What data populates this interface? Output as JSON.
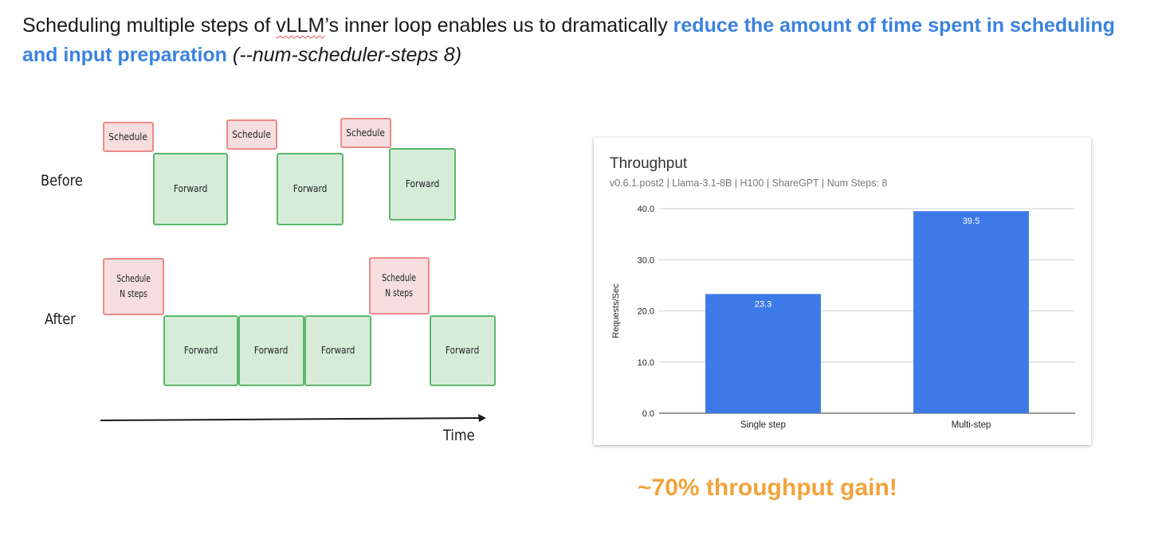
{
  "headline": {
    "part1": " Scheduling multiple steps of ",
    "product": "vLLM",
    "part2": "’s inner loop enables us to dramatically ",
    "highlight": "reduce the amount of time spent in scheduling and input preparation",
    "flag": " (--num-scheduler-steps 8)"
  },
  "diagram": {
    "before_label": "Before",
    "after_label": "After",
    "time_label": "Time",
    "schedule_label": "Schedule",
    "schedule_n_line1": "Schedule",
    "schedule_n_line2": "N steps",
    "forward_label": "Forward",
    "colors": {
      "schedule_fill": "#f6dede",
      "schedule_border": "#ec8a8a",
      "forward_fill": "#d6ecd9",
      "forward_border": "#5cb868"
    }
  },
  "chart_data": {
    "type": "bar",
    "title": "Throughput",
    "subtitle": "v0.6.1.post2 | Llama-3.1-8B | H100 | ShareGPT | Num Steps: 8",
    "ylabel": "Requests/Sec",
    "xlabel": "",
    "categories": [
      "Single step",
      "Multi-step"
    ],
    "values": [
      23.3,
      39.5
    ],
    "data_labels": [
      "23.3",
      "39.5"
    ],
    "ylim": [
      0,
      40
    ],
    "yticks": [
      "0.0",
      "10.0",
      "20.0",
      "30.0",
      "40.0"
    ],
    "grid": true,
    "bar_color": "#3d7ae8"
  },
  "gain_text": "~70% throughput gain!"
}
